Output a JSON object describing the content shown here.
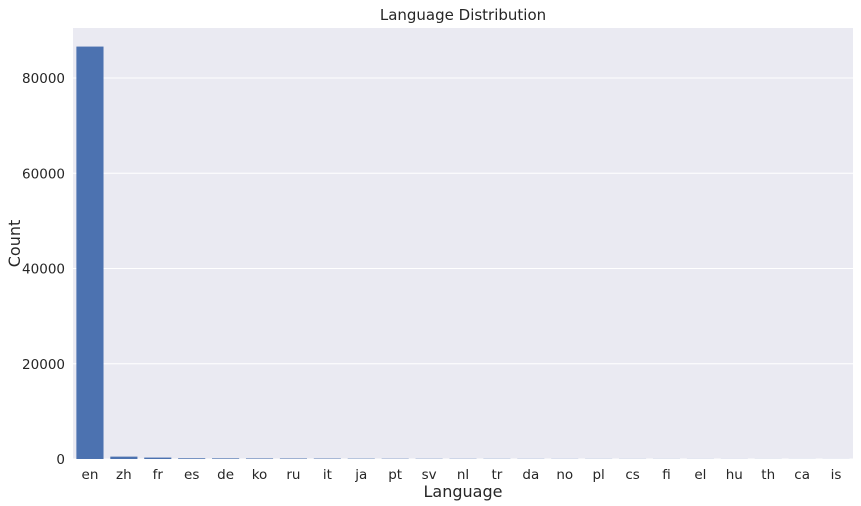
{
  "chart_data": {
    "type": "bar",
    "title": "Language Distribution",
    "xlabel": "Language",
    "ylabel": "Count",
    "categories": [
      "en",
      "zh",
      "fr",
      "es",
      "de",
      "ko",
      "ru",
      "it",
      "ja",
      "pt",
      "sv",
      "nl",
      "tr",
      "da",
      "no",
      "pl",
      "cs",
      "fi",
      "el",
      "hu",
      "th",
      "ca",
      "is"
    ],
    "values": [
      86600,
      500,
      300,
      150,
      130,
      110,
      100,
      90,
      70,
      60,
      50,
      45,
      40,
      35,
      30,
      28,
      25,
      22,
      20,
      18,
      16,
      14,
      12
    ],
    "ylim": [
      0,
      90500
    ],
    "yticks": [
      0,
      20000,
      40000,
      60000,
      80000
    ],
    "grid": true,
    "colors": {
      "bar": "#4c72b0",
      "background": "#eaeaf2",
      "grid": "#ffffff"
    }
  }
}
